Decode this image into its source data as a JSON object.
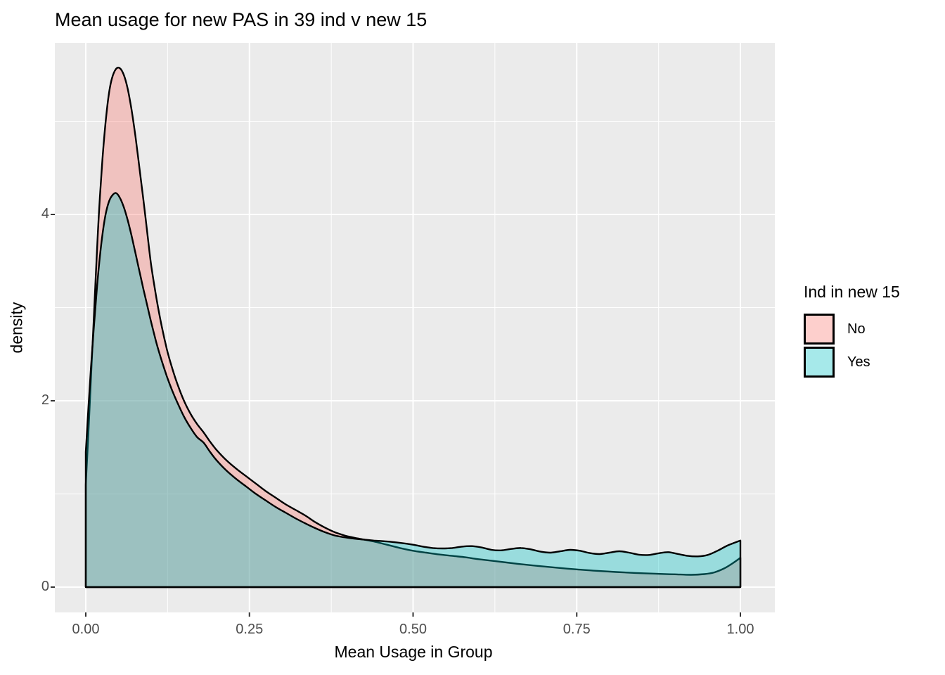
{
  "page": {
    "background": "#FFFFFF"
  },
  "chart_data": {
    "type": "area",
    "subtype": "density",
    "title": "Mean usage for new PAS in 39 ind v new 15",
    "xlabel": "Mean Usage in Group",
    "ylabel": "density",
    "xlim": [
      0,
      1
    ],
    "ylim": [
      0,
      5.57
    ],
    "grid": true,
    "panel_bg": "#EBEBEB",
    "grid_color": "#FFFFFF",
    "tick_color": "#333333",
    "tick_label_color": "#4D4D4D",
    "x_ticks": {
      "values": [
        0,
        0.25,
        0.5,
        0.75,
        1.0
      ],
      "labels": [
        "0.00",
        "0.25",
        "0.50",
        "0.75",
        "1.00"
      ]
    },
    "y_ticks": {
      "values": [
        0,
        2,
        4
      ],
      "labels": [
        "0",
        "2",
        "4"
      ]
    },
    "x_minor": [
      0.125,
      0.375,
      0.625,
      0.875
    ],
    "y_minor": [
      1,
      3,
      5
    ],
    "legend": {
      "title": "Ind in new 15",
      "position": "right",
      "entries": [
        {
          "label": "No"
        },
        {
          "label": "Yes"
        }
      ]
    },
    "series": [
      {
        "name": "No",
        "fill": "rgba(248,118,109,0.35)",
        "stroke": "#000000",
        "peak": {
          "x": 0.05,
          "density": 5.57
        },
        "points": [
          [
            0.0,
            1.1
          ],
          [
            0.004,
            1.65
          ],
          [
            0.008,
            2.25
          ],
          [
            0.012,
            2.85
          ],
          [
            0.016,
            3.45
          ],
          [
            0.02,
            4.0
          ],
          [
            0.025,
            4.55
          ],
          [
            0.03,
            4.97
          ],
          [
            0.035,
            5.28
          ],
          [
            0.04,
            5.46
          ],
          [
            0.046,
            5.56
          ],
          [
            0.052,
            5.57
          ],
          [
            0.058,
            5.5
          ],
          [
            0.064,
            5.35
          ],
          [
            0.07,
            5.12
          ],
          [
            0.076,
            4.83
          ],
          [
            0.082,
            4.5
          ],
          [
            0.088,
            4.16
          ],
          [
            0.094,
            3.8
          ],
          [
            0.1,
            3.45
          ],
          [
            0.108,
            3.1
          ],
          [
            0.116,
            2.8
          ],
          [
            0.124,
            2.55
          ],
          [
            0.132,
            2.35
          ],
          [
            0.14,
            2.18
          ],
          [
            0.15,
            2.0
          ],
          [
            0.16,
            1.86
          ],
          [
            0.17,
            1.75
          ],
          [
            0.18,
            1.66
          ],
          [
            0.19,
            1.56
          ],
          [
            0.2,
            1.47
          ],
          [
            0.215,
            1.36
          ],
          [
            0.23,
            1.27
          ],
          [
            0.245,
            1.19
          ],
          [
            0.26,
            1.11
          ],
          [
            0.275,
            1.03
          ],
          [
            0.29,
            0.96
          ],
          [
            0.305,
            0.89
          ],
          [
            0.32,
            0.83
          ],
          [
            0.335,
            0.77
          ],
          [
            0.35,
            0.7
          ],
          [
            0.365,
            0.64
          ],
          [
            0.38,
            0.59
          ],
          [
            0.395,
            0.555
          ],
          [
            0.41,
            0.53
          ],
          [
            0.425,
            0.51
          ],
          [
            0.44,
            0.49
          ],
          [
            0.46,
            0.455
          ],
          [
            0.48,
            0.42
          ],
          [
            0.5,
            0.39
          ],
          [
            0.52,
            0.37
          ],
          [
            0.54,
            0.35
          ],
          [
            0.56,
            0.335
          ],
          [
            0.58,
            0.32
          ],
          [
            0.6,
            0.3
          ],
          [
            0.63,
            0.275
          ],
          [
            0.66,
            0.25
          ],
          [
            0.69,
            0.228
          ],
          [
            0.72,
            0.208
          ],
          [
            0.75,
            0.19
          ],
          [
            0.78,
            0.175
          ],
          [
            0.81,
            0.162
          ],
          [
            0.84,
            0.152
          ],
          [
            0.87,
            0.144
          ],
          [
            0.9,
            0.137
          ],
          [
            0.925,
            0.132
          ],
          [
            0.945,
            0.14
          ],
          [
            0.96,
            0.158
          ],
          [
            0.975,
            0.2
          ],
          [
            0.988,
            0.255
          ],
          [
            1.0,
            0.315
          ]
        ]
      },
      {
        "name": "Yes",
        "fill": "rgba(0,191,196,0.35)",
        "stroke": "#000000",
        "peak": {
          "x": 0.046,
          "density": 4.23
        },
        "points": [
          [
            0.0,
            1.45
          ],
          [
            0.004,
            1.92
          ],
          [
            0.008,
            2.36
          ],
          [
            0.012,
            2.76
          ],
          [
            0.016,
            3.12
          ],
          [
            0.02,
            3.44
          ],
          [
            0.025,
            3.76
          ],
          [
            0.03,
            3.99
          ],
          [
            0.035,
            4.13
          ],
          [
            0.04,
            4.2
          ],
          [
            0.046,
            4.23
          ],
          [
            0.052,
            4.18
          ],
          [
            0.058,
            4.08
          ],
          [
            0.064,
            3.94
          ],
          [
            0.07,
            3.77
          ],
          [
            0.076,
            3.58
          ],
          [
            0.082,
            3.39
          ],
          [
            0.088,
            3.2
          ],
          [
            0.094,
            3.02
          ],
          [
            0.1,
            2.84
          ],
          [
            0.108,
            2.62
          ],
          [
            0.116,
            2.43
          ],
          [
            0.124,
            2.26
          ],
          [
            0.132,
            2.11
          ],
          [
            0.14,
            1.98
          ],
          [
            0.15,
            1.83
          ],
          [
            0.16,
            1.71
          ],
          [
            0.17,
            1.61
          ],
          [
            0.18,
            1.55
          ],
          [
            0.19,
            1.45
          ],
          [
            0.2,
            1.36
          ],
          [
            0.215,
            1.25
          ],
          [
            0.23,
            1.16
          ],
          [
            0.245,
            1.08
          ],
          [
            0.26,
            1.0
          ],
          [
            0.275,
            0.93
          ],
          [
            0.29,
            0.86
          ],
          [
            0.305,
            0.8
          ],
          [
            0.32,
            0.74
          ],
          [
            0.335,
            0.685
          ],
          [
            0.35,
            0.635
          ],
          [
            0.365,
            0.59
          ],
          [
            0.38,
            0.555
          ],
          [
            0.395,
            0.535
          ],
          [
            0.41,
            0.52
          ],
          [
            0.425,
            0.51
          ],
          [
            0.44,
            0.5
          ],
          [
            0.46,
            0.49
          ],
          [
            0.48,
            0.475
          ],
          [
            0.5,
            0.455
          ],
          [
            0.515,
            0.435
          ],
          [
            0.53,
            0.42
          ],
          [
            0.545,
            0.415
          ],
          [
            0.56,
            0.42
          ],
          [
            0.575,
            0.435
          ],
          [
            0.59,
            0.44
          ],
          [
            0.605,
            0.425
          ],
          [
            0.62,
            0.4
          ],
          [
            0.635,
            0.395
          ],
          [
            0.65,
            0.41
          ],
          [
            0.665,
            0.42
          ],
          [
            0.68,
            0.405
          ],
          [
            0.695,
            0.38
          ],
          [
            0.71,
            0.37
          ],
          [
            0.725,
            0.385
          ],
          [
            0.74,
            0.4
          ],
          [
            0.755,
            0.39
          ],
          [
            0.77,
            0.365
          ],
          [
            0.785,
            0.355
          ],
          [
            0.8,
            0.37
          ],
          [
            0.815,
            0.385
          ],
          [
            0.83,
            0.37
          ],
          [
            0.845,
            0.348
          ],
          [
            0.86,
            0.345
          ],
          [
            0.875,
            0.363
          ],
          [
            0.89,
            0.375
          ],
          [
            0.905,
            0.355
          ],
          [
            0.92,
            0.335
          ],
          [
            0.935,
            0.33
          ],
          [
            0.95,
            0.345
          ],
          [
            0.965,
            0.39
          ],
          [
            0.98,
            0.445
          ],
          [
            1.0,
            0.5
          ]
        ]
      }
    ]
  }
}
